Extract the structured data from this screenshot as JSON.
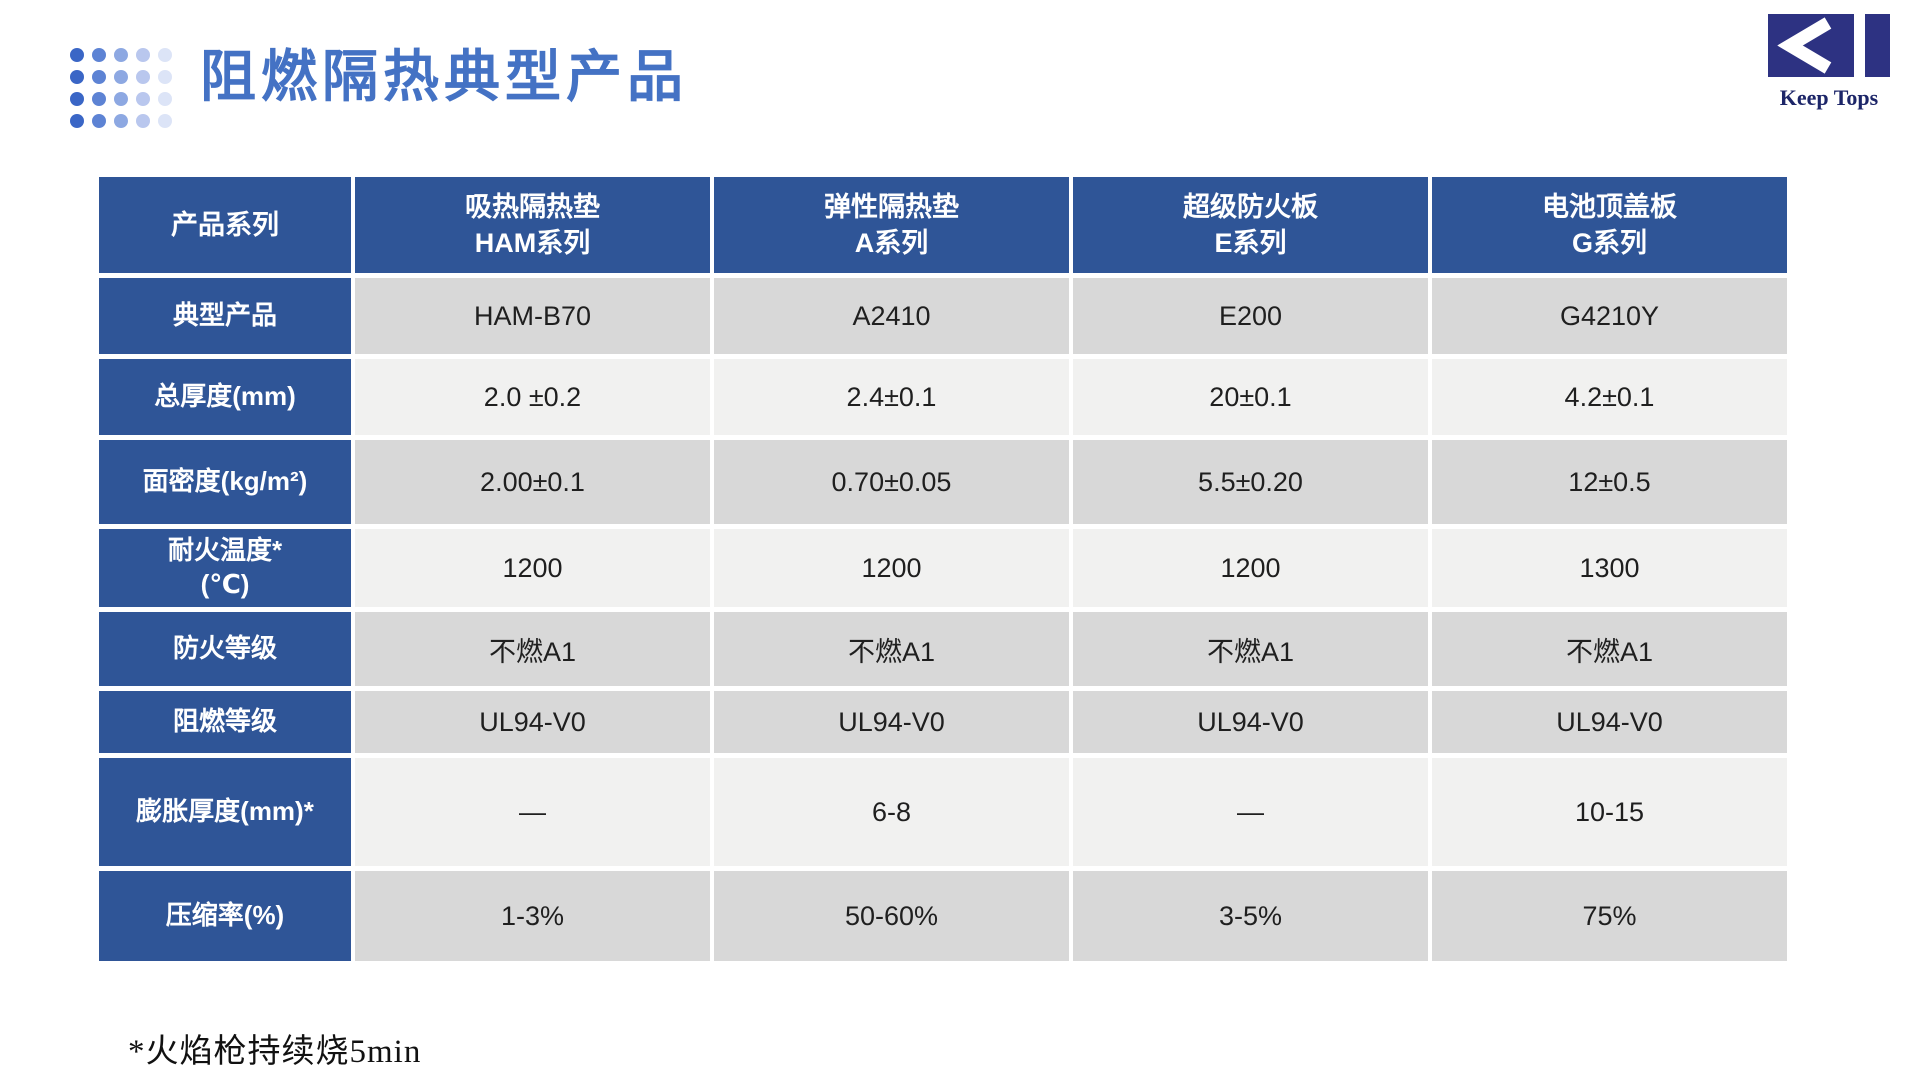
{
  "page": {
    "title": "阻燃隔热典型产品",
    "footnote": "*火焰枪持续烧5min"
  },
  "logo": {
    "text": "Keep Tops",
    "mark": "chevron-and-bar"
  },
  "colors": {
    "header_blue": "#2f5597",
    "title_blue": "#4472c4",
    "band_dark": "#d8d8d8",
    "band_light": "#f1f1f0",
    "highlight_blue": "#1111e8",
    "logo_navy": "#2d3282"
  },
  "decoration": {
    "rows": 4,
    "dot_columns": [
      "#3a66c6",
      "#5d83d4",
      "#8da8e2",
      "#b9c7ee",
      "#dce4f7"
    ]
  },
  "table": {
    "corner_label": "产品系列",
    "columns": [
      "吸热隔热垫\nHAM系列",
      "弹性隔热垫\nA系列",
      "超级防火板\nE系列",
      "电池顶盖板\nG系列"
    ],
    "rows": [
      {
        "label": "典型产品",
        "values": [
          "HAM-B70",
          "A2410",
          "E200",
          "G4210Y"
        ]
      },
      {
        "label": "总厚度(mm)",
        "values": [
          "2.0 ±0.2",
          "2.4±0.1",
          "20±0.1",
          "4.2±0.1"
        ]
      },
      {
        "label": "面密度(kg/m²)",
        "values": [
          "2.00±0.1",
          "0.70±0.05",
          "5.5±0.20",
          "12±0.5"
        ]
      },
      {
        "label": "耐火温度*\n(℃)",
        "values": [
          "1200",
          "1200",
          "1200",
          "1300"
        ]
      },
      {
        "label": "防火等级",
        "values": [
          "不燃A1",
          "不燃A1",
          "不燃A1",
          "不燃A1"
        ]
      },
      {
        "label": "阻燃等级",
        "values": [
          "UL94-V0",
          "UL94-V0",
          "UL94-V0",
          "UL94-V0"
        ]
      },
      {
        "label": "膨胀厚度(mm)*",
        "values": [
          "—",
          "6-8",
          "—",
          "10-15"
        ]
      },
      {
        "label": "压缩率(%)",
        "values": [
          "1-3%",
          "50-60%",
          "3-5%",
          "75%"
        ]
      }
    ]
  }
}
